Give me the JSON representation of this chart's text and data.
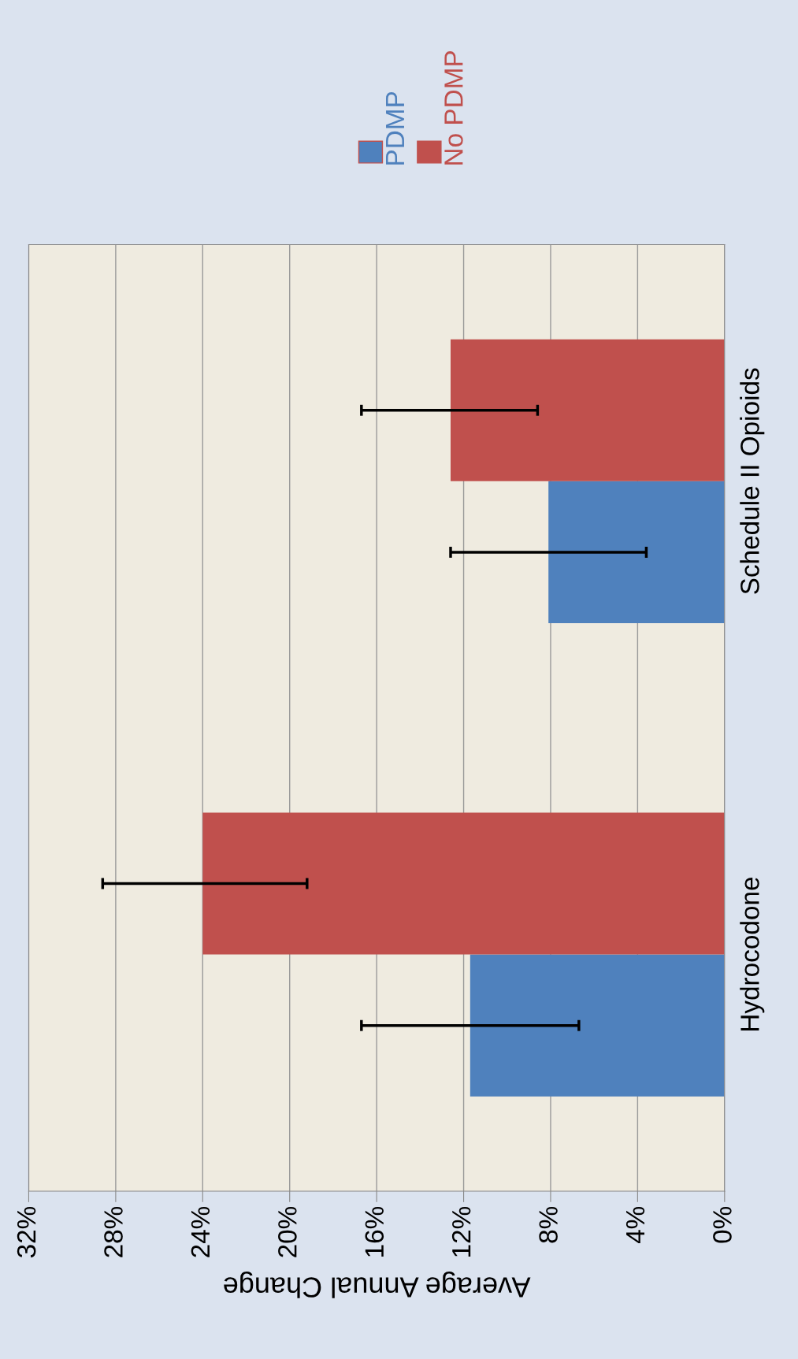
{
  "chart_data": {
    "type": "bar",
    "orientation": "horizontal",
    "xlabel": "Average Annual Change",
    "categories": [
      "Schedule II Opioids",
      "Hydrocodone"
    ],
    "series": [
      {
        "name": "PDMP",
        "color": "#4f81bd",
        "values": [
          8.1,
          11.7
        ],
        "errors": [
          [
            3.6,
            12.6
          ],
          [
            6.7,
            16.7
          ]
        ]
      },
      {
        "name": "No PDMP",
        "color": "#c0504d",
        "values": [
          12.6,
          24.0
        ],
        "errors": [
          [
            8.6,
            16.7
          ],
          [
            19.2,
            28.6
          ]
        ]
      }
    ],
    "xlim": [
      32,
      0
    ],
    "xticks": [
      {
        "value": 32,
        "label": "32%"
      },
      {
        "value": 28,
        "label": "28%"
      },
      {
        "value": 24,
        "label": "24%"
      },
      {
        "value": 20,
        "label": "20%"
      },
      {
        "value": 16,
        "label": "16%"
      },
      {
        "value": 12,
        "label": "12%"
      },
      {
        "value": 8,
        "label": "8%"
      },
      {
        "value": 4,
        "label": "4%"
      },
      {
        "value": 0,
        "label": "0%"
      }
    ],
    "grid": "x",
    "legend": "top right"
  }
}
